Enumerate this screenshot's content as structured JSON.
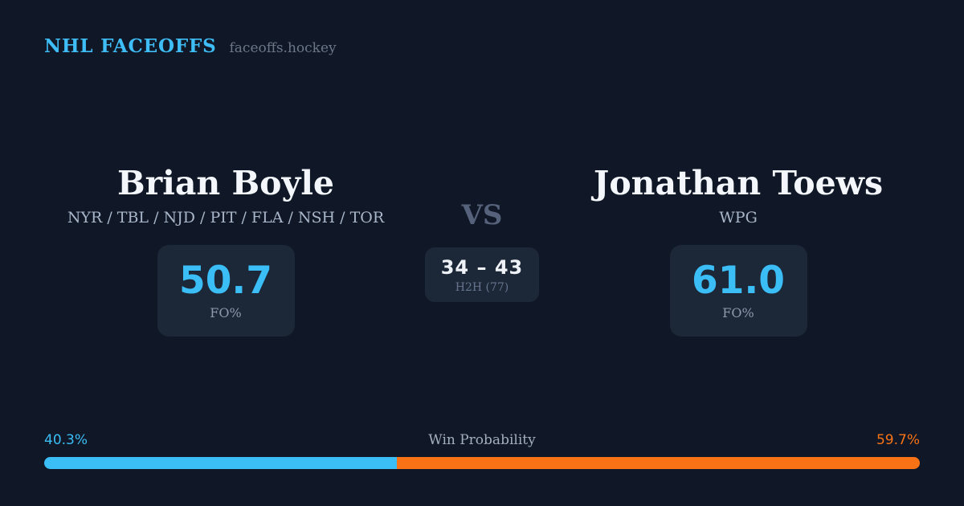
{
  "header": {
    "brand": "NHL FACEOFFS",
    "site": "faceoffs.hockey"
  },
  "matchup": {
    "left": {
      "name": "Brian Boyle",
      "teams": "NYR / TBL / NJD / PIT / FLA / NSH / TOR",
      "fo_value": "50.7",
      "fo_label": "FO%",
      "win_prob_label": "40.3%",
      "win_prob_pct": 40.3
    },
    "right": {
      "name": "Jonathan Toews",
      "teams": "WPG",
      "fo_value": "61.0",
      "fo_label": "FO%",
      "win_prob_label": "59.7%",
      "win_prob_pct": 59.7
    },
    "center": {
      "vs_label": "VS",
      "h2h_score": "34 – 43",
      "h2h_label": "H2H (77)"
    }
  },
  "win_probability": {
    "label": "Win Probability"
  },
  "colors": {
    "background": "#101827",
    "panel": "#1c2737",
    "accent_blue": "#3bbdf6",
    "accent_orange": "#f97316",
    "text_primary": "#f3f6fa",
    "text_muted": "#8e9aac"
  }
}
